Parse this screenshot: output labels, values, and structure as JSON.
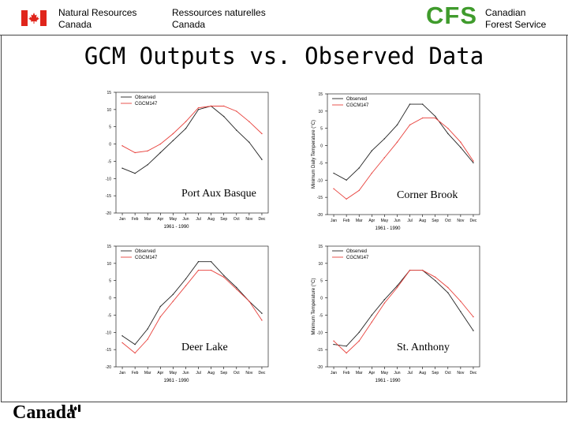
{
  "header": {
    "org_en_line1": "Natural Resources",
    "org_en_line2": "Canada",
    "org_fr_line1": "Ressources naturelles",
    "org_fr_line2": "Canada",
    "cfs_logo": "CFS",
    "cfs_line1": "Canadian",
    "cfs_line2": "Forest Service"
  },
  "title": "GCM Outputs vs. Observed Data",
  "footer": {
    "wordmark": "Canada"
  },
  "colors": {
    "observed": "#222222",
    "gcm": "#e8413c",
    "cfs_green": "#3f9b2c",
    "flag_red": "#e0251b"
  },
  "icons": [
    "canada-flag-icon",
    "canada-wordmark-flag-icon"
  ],
  "chart_data": [
    {
      "type": "line",
      "station": "Port Aux Basque",
      "xlabel": "1961 - 1990",
      "ylabel": "",
      "ylim": [
        -20,
        15
      ],
      "yticks": [
        -20,
        -15,
        -10,
        -5,
        0,
        5,
        10,
        15
      ],
      "categories": [
        "Jan",
        "Feb",
        "Mar",
        "Apr",
        "May",
        "Jun",
        "Jul",
        "Aug",
        "Sep",
        "Oct",
        "Nov",
        "Dec"
      ],
      "legend_position": "top-left",
      "series": [
        {
          "name": "Observed",
          "color": "#222222",
          "values": [
            -7,
            -8.5,
            -6,
            -2.5,
            1,
            4.5,
            10,
            11,
            8,
            4,
            0.5,
            -4.5
          ]
        },
        {
          "name": "CGCM147",
          "color": "#e8413c",
          "values": [
            -0.5,
            -2.5,
            -2,
            0,
            3,
            6.5,
            10.5,
            11,
            11,
            9.5,
            6.5,
            3
          ]
        }
      ],
      "garbled_label": ""
    },
    {
      "type": "line",
      "station": "Corner Brook",
      "xlabel": "1961 - 1990",
      "ylabel": "Minimum Daily Temperature (°C)",
      "ylim": [
        -20,
        15
      ],
      "yticks": [
        -20,
        -15,
        -10,
        -5,
        0,
        5,
        10,
        15
      ],
      "categories": [
        "Jan",
        "Feb",
        "Mar",
        "Apr",
        "May",
        "Jun",
        "Jul",
        "Aug",
        "Sep",
        "Oct",
        "Nov",
        "Dec"
      ],
      "legend_position": "top-left",
      "series": [
        {
          "name": "Observed",
          "color": "#222222",
          "values": [
            -8,
            -10,
            -6.5,
            -1.5,
            2,
            6,
            12,
            12,
            8.5,
            3.5,
            -0.5,
            -5
          ]
        },
        {
          "name": "CGCM147",
          "color": "#e8413c",
          "values": [
            -12.5,
            -15.5,
            -13,
            -8,
            -3.5,
            1,
            6,
            8,
            8,
            5,
            1,
            -4.5
          ]
        }
      ]
    },
    {
      "type": "line",
      "station": "Deer Lake",
      "xlabel": "1961 - 1990",
      "ylabel": "",
      "ylim": [
        -20,
        15
      ],
      "yticks": [
        -20,
        -15,
        -10,
        -5,
        0,
        5,
        10,
        15
      ],
      "categories": [
        "Jan",
        "Feb",
        "Mar",
        "Apr",
        "May",
        "Jun",
        "Jul",
        "Aug",
        "Sep",
        "Oct",
        "Nov",
        "Dec"
      ],
      "legend_position": "top-left",
      "series": [
        {
          "name": "Observed",
          "color": "#222222",
          "values": [
            -11,
            -13.5,
            -9,
            -2.5,
            1,
            5.5,
            10.5,
            10.5,
            6.5,
            3,
            -1,
            -4.5
          ]
        },
        {
          "name": "CGCM147",
          "color": "#e8413c",
          "values": [
            -13,
            -16,
            -12,
            -5.5,
            -1,
            3.5,
            8,
            8,
            6,
            2.5,
            -1,
            -6.5
          ]
        }
      ],
      "garbled_label": ""
    },
    {
      "type": "line",
      "station": "St. Anthony",
      "xlabel": "1961 - 1990",
      "ylabel": "Minimum Temperature (°C)",
      "ylim": [
        -20,
        15
      ],
      "yticks": [
        -20,
        -15,
        -10,
        -5,
        0,
        5,
        10,
        15
      ],
      "categories": [
        "Jan",
        "Feb",
        "Mar",
        "Apr",
        "May",
        "Jun",
        "Jul",
        "Aug",
        "Sep",
        "Oct",
        "Nov",
        "Dec"
      ],
      "legend_position": "top-left",
      "series": [
        {
          "name": "Observed",
          "color": "#222222",
          "values": [
            -13.5,
            -14,
            -10,
            -5,
            -0.5,
            3.5,
            8,
            8,
            5,
            1.5,
            -4,
            -9.5
          ]
        },
        {
          "name": "CGCM147",
          "color": "#e8413c",
          "values": [
            -12.5,
            -16,
            -12.5,
            -7,
            -1.5,
            3,
            8,
            8,
            6,
            3,
            -1,
            -5.5
          ]
        }
      ]
    }
  ]
}
